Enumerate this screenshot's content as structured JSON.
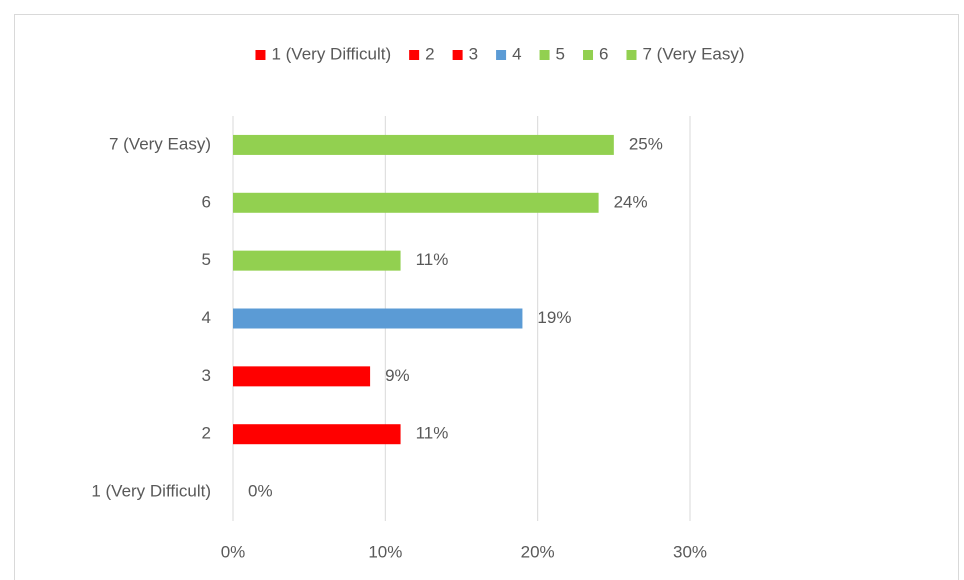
{
  "chart_data": {
    "type": "bar",
    "orientation": "horizontal",
    "categories": [
      "1 (Very Difficult)",
      "2",
      "3",
      "4",
      "5",
      "6",
      "7 (Very Easy)"
    ],
    "values": [
      0,
      11,
      9,
      19,
      11,
      24,
      25
    ],
    "value_labels": [
      "0%",
      "11%",
      "9%",
      "19%",
      "11%",
      "24%",
      "25%"
    ],
    "colors": [
      "#ff0000",
      "#ff0000",
      "#ff0000",
      "#5b9bd5",
      "#92d050",
      "#92d050",
      "#92d050"
    ],
    "xlim": [
      0,
      30
    ],
    "xticks": [
      {
        "value": 0,
        "label": "0%"
      },
      {
        "value": 10,
        "label": "10%"
      },
      {
        "value": 20,
        "label": "20%"
      },
      {
        "value": 30,
        "label": "30%"
      }
    ],
    "grid": true,
    "legend": "top"
  }
}
